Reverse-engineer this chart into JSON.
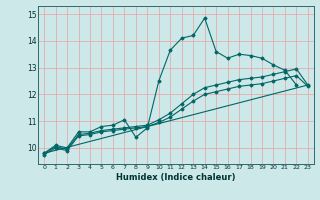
{
  "xlabel": "Humidex (Indice chaleur)",
  "xlim": [
    -0.5,
    23.5
  ],
  "ylim": [
    9.4,
    15.3
  ],
  "yticks": [
    10,
    11,
    12,
    13,
    14,
    15
  ],
  "xticks": [
    0,
    1,
    2,
    3,
    4,
    5,
    6,
    7,
    8,
    9,
    10,
    11,
    12,
    13,
    14,
    15,
    16,
    17,
    18,
    19,
    20,
    21,
    22,
    23
  ],
  "bg_color": "#cce8e8",
  "grid_color": "#e8a0a0",
  "line_color": "#006666",
  "series": [
    {
      "x": [
        0,
        1,
        2,
        3,
        4,
        5,
        6,
        7,
        8,
        9,
        10,
        11,
        12,
        13,
        14,
        15,
        16,
        17,
        18,
        19,
        20,
        21,
        22
      ],
      "y": [
        9.8,
        10.1,
        10.0,
        10.6,
        10.6,
        10.8,
        10.85,
        11.05,
        10.4,
        10.75,
        12.5,
        13.65,
        14.1,
        14.2,
        14.85,
        13.6,
        13.35,
        13.5,
        13.45,
        13.35,
        13.1,
        12.9,
        12.35
      ]
    },
    {
      "x": [
        0,
        1,
        2,
        3,
        4,
        5,
        6,
        7,
        8,
        9,
        10,
        11,
        12,
        13,
        14,
        15,
        16,
        17,
        18,
        19,
        20,
        21,
        22,
        23
      ],
      "y": [
        9.8,
        10.05,
        9.95,
        10.5,
        10.55,
        10.65,
        10.7,
        10.75,
        10.8,
        10.85,
        11.05,
        11.3,
        11.65,
        12.0,
        12.25,
        12.35,
        12.45,
        12.55,
        12.6,
        12.65,
        12.75,
        12.85,
        12.95,
        12.35
      ]
    },
    {
      "x": [
        0,
        1,
        2,
        3,
        4,
        5,
        6,
        7,
        8,
        9,
        10,
        11,
        12,
        13,
        14,
        15,
        16,
        17,
        18,
        19,
        20,
        21,
        22,
        23
      ],
      "y": [
        9.75,
        10.0,
        9.9,
        10.45,
        10.5,
        10.6,
        10.65,
        10.7,
        10.75,
        10.8,
        10.95,
        11.15,
        11.45,
        11.75,
        12.0,
        12.1,
        12.2,
        12.3,
        12.35,
        12.4,
        12.5,
        12.6,
        12.7,
        12.3
      ]
    },
    {
      "x": [
        0,
        23
      ],
      "y": [
        9.8,
        12.35
      ],
      "straight": true
    }
  ]
}
